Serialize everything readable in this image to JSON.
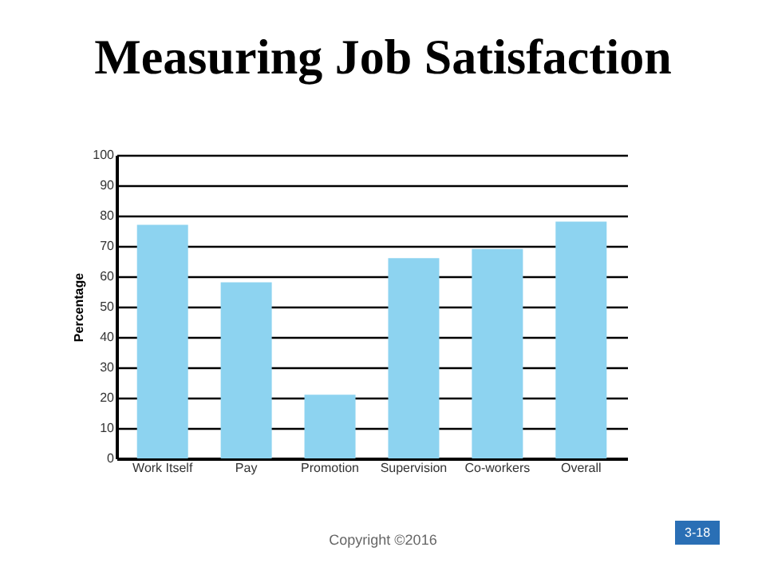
{
  "chart_data": {
    "type": "bar",
    "title": "Measuring Job Satisfaction",
    "ylabel": "Percentage",
    "categories": [
      "Work Itself",
      "Pay",
      "Promotion",
      "Supervision",
      "Co-workers",
      "Overall"
    ],
    "values": [
      77,
      58,
      21,
      66,
      69,
      78
    ],
    "color": "#8dd3f0",
    "ylim": [
      0,
      100
    ],
    "yticks": [
      0,
      10,
      20,
      30,
      40,
      50,
      60,
      70,
      80,
      90,
      100
    ],
    "grid": "y",
    "annotations": [
      "Copyright ©2016",
      "3-18"
    ]
  }
}
